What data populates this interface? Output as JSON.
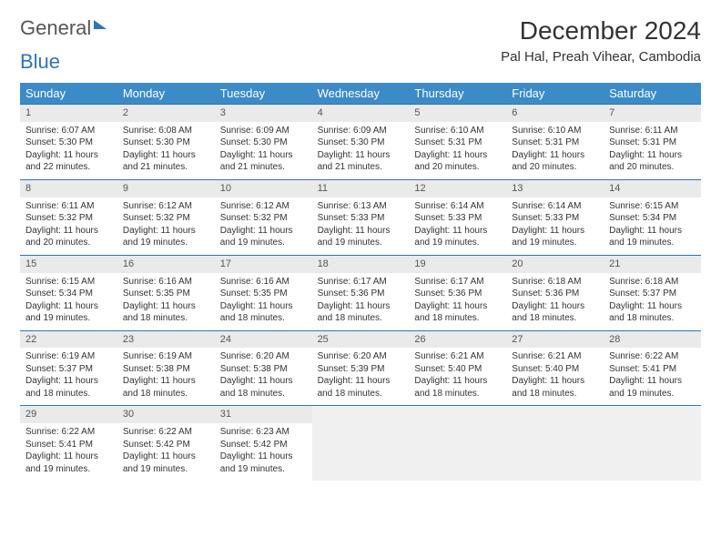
{
  "logo": {
    "part1": "General",
    "part2": "Blue"
  },
  "header": {
    "title": "December 2024",
    "location": "Pal Hal, Preah Vihear, Cambodia"
  },
  "colors": {
    "header_bg": "#3b8bc9",
    "header_text": "#ffffff",
    "week_border": "#2e75b6",
    "daynum_bg": "#eaeaea",
    "empty_bg": "#f0f0f0",
    "text": "#333333"
  },
  "day_names": [
    "Sunday",
    "Monday",
    "Tuesday",
    "Wednesday",
    "Thursday",
    "Friday",
    "Saturday"
  ],
  "weeks": [
    [
      {
        "n": "1",
        "sr": "6:07 AM",
        "ss": "5:30 PM",
        "dl": "11 hours and 22 minutes."
      },
      {
        "n": "2",
        "sr": "6:08 AM",
        "ss": "5:30 PM",
        "dl": "11 hours and 21 minutes."
      },
      {
        "n": "3",
        "sr": "6:09 AM",
        "ss": "5:30 PM",
        "dl": "11 hours and 21 minutes."
      },
      {
        "n": "4",
        "sr": "6:09 AM",
        "ss": "5:30 PM",
        "dl": "11 hours and 21 minutes."
      },
      {
        "n": "5",
        "sr": "6:10 AM",
        "ss": "5:31 PM",
        "dl": "11 hours and 20 minutes."
      },
      {
        "n": "6",
        "sr": "6:10 AM",
        "ss": "5:31 PM",
        "dl": "11 hours and 20 minutes."
      },
      {
        "n": "7",
        "sr": "6:11 AM",
        "ss": "5:31 PM",
        "dl": "11 hours and 20 minutes."
      }
    ],
    [
      {
        "n": "8",
        "sr": "6:11 AM",
        "ss": "5:32 PM",
        "dl": "11 hours and 20 minutes."
      },
      {
        "n": "9",
        "sr": "6:12 AM",
        "ss": "5:32 PM",
        "dl": "11 hours and 19 minutes."
      },
      {
        "n": "10",
        "sr": "6:12 AM",
        "ss": "5:32 PM",
        "dl": "11 hours and 19 minutes."
      },
      {
        "n": "11",
        "sr": "6:13 AM",
        "ss": "5:33 PM",
        "dl": "11 hours and 19 minutes."
      },
      {
        "n": "12",
        "sr": "6:14 AM",
        "ss": "5:33 PM",
        "dl": "11 hours and 19 minutes."
      },
      {
        "n": "13",
        "sr": "6:14 AM",
        "ss": "5:33 PM",
        "dl": "11 hours and 19 minutes."
      },
      {
        "n": "14",
        "sr": "6:15 AM",
        "ss": "5:34 PM",
        "dl": "11 hours and 19 minutes."
      }
    ],
    [
      {
        "n": "15",
        "sr": "6:15 AM",
        "ss": "5:34 PM",
        "dl": "11 hours and 19 minutes."
      },
      {
        "n": "16",
        "sr": "6:16 AM",
        "ss": "5:35 PM",
        "dl": "11 hours and 18 minutes."
      },
      {
        "n": "17",
        "sr": "6:16 AM",
        "ss": "5:35 PM",
        "dl": "11 hours and 18 minutes."
      },
      {
        "n": "18",
        "sr": "6:17 AM",
        "ss": "5:36 PM",
        "dl": "11 hours and 18 minutes."
      },
      {
        "n": "19",
        "sr": "6:17 AM",
        "ss": "5:36 PM",
        "dl": "11 hours and 18 minutes."
      },
      {
        "n": "20",
        "sr": "6:18 AM",
        "ss": "5:36 PM",
        "dl": "11 hours and 18 minutes."
      },
      {
        "n": "21",
        "sr": "6:18 AM",
        "ss": "5:37 PM",
        "dl": "11 hours and 18 minutes."
      }
    ],
    [
      {
        "n": "22",
        "sr": "6:19 AM",
        "ss": "5:37 PM",
        "dl": "11 hours and 18 minutes."
      },
      {
        "n": "23",
        "sr": "6:19 AM",
        "ss": "5:38 PM",
        "dl": "11 hours and 18 minutes."
      },
      {
        "n": "24",
        "sr": "6:20 AM",
        "ss": "5:38 PM",
        "dl": "11 hours and 18 minutes."
      },
      {
        "n": "25",
        "sr": "6:20 AM",
        "ss": "5:39 PM",
        "dl": "11 hours and 18 minutes."
      },
      {
        "n": "26",
        "sr": "6:21 AM",
        "ss": "5:40 PM",
        "dl": "11 hours and 18 minutes."
      },
      {
        "n": "27",
        "sr": "6:21 AM",
        "ss": "5:40 PM",
        "dl": "11 hours and 18 minutes."
      },
      {
        "n": "28",
        "sr": "6:22 AM",
        "ss": "5:41 PM",
        "dl": "11 hours and 19 minutes."
      }
    ],
    [
      {
        "n": "29",
        "sr": "6:22 AM",
        "ss": "5:41 PM",
        "dl": "11 hours and 19 minutes."
      },
      {
        "n": "30",
        "sr": "6:22 AM",
        "ss": "5:42 PM",
        "dl": "11 hours and 19 minutes."
      },
      {
        "n": "31",
        "sr": "6:23 AM",
        "ss": "5:42 PM",
        "dl": "11 hours and 19 minutes."
      },
      null,
      null,
      null,
      null
    ]
  ],
  "labels": {
    "sunrise": "Sunrise:",
    "sunset": "Sunset:",
    "daylight": "Daylight:"
  }
}
